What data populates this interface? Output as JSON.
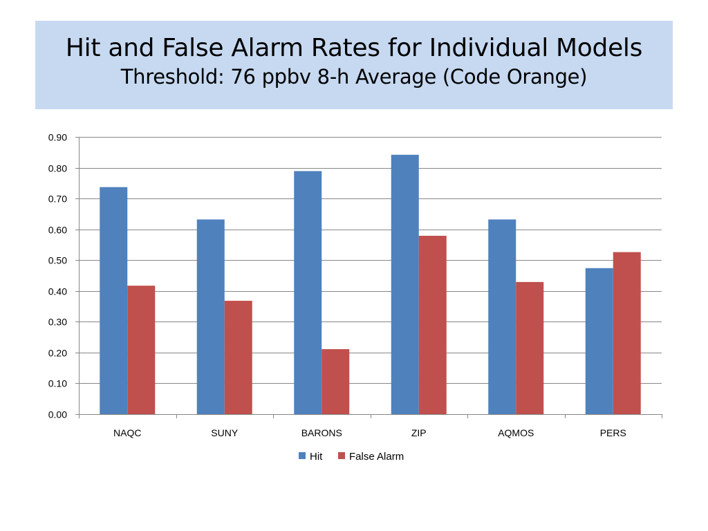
{
  "title": {
    "main": "Hit and False Alarm Rates for Individual Models",
    "sub": "Threshold:  76 ppbv 8-h Average (Code Orange)"
  },
  "colors": {
    "title_background": "#c6d9f1",
    "hit": "#4f81bd",
    "false_alarm": "#c0504d",
    "gridline": "#868686"
  },
  "chart_data": {
    "type": "bar",
    "title": "",
    "xlabel": "",
    "ylabel": "",
    "categories": [
      "NAQC",
      "SUNY",
      "BARONS",
      "ZIP",
      "AQMOS",
      "PERS"
    ],
    "series": [
      {
        "name": "Hit",
        "color": "#4f81bd",
        "values": [
          0.737,
          0.632,
          0.789,
          0.842,
          0.632,
          0.474
        ]
      },
      {
        "name": "False Alarm",
        "color": "#c0504d",
        "values": [
          0.417,
          0.368,
          0.211,
          0.579,
          0.429,
          0.526
        ]
      }
    ],
    "ylim": [
      0,
      0.9
    ],
    "yticks": [
      "0.00",
      "0.10",
      "0.20",
      "0.30",
      "0.40",
      "0.50",
      "0.60",
      "0.70",
      "0.80",
      "0.90"
    ],
    "grid": true,
    "legend_position": "bottom"
  }
}
